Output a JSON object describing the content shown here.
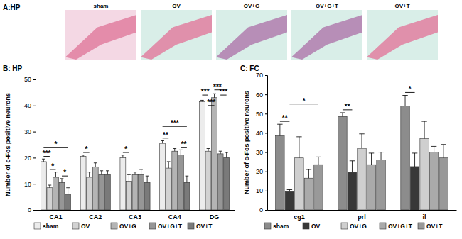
{
  "panel_a": {
    "title": "A:HP",
    "labels": [
      "sham",
      "OV",
      "OV+G",
      "OV+G+T",
      "OV+T"
    ]
  },
  "chart_data": [
    {
      "type": "bar",
      "title": "B: HP",
      "y_label": "Number of c-Fos positive neurons",
      "categories": [
        "CA1",
        "CA2",
        "CA3",
        "CA4",
        "DG"
      ],
      "ylim": [
        0,
        50
      ],
      "yticks": [
        0,
        10,
        20,
        30,
        40,
        50
      ],
      "grid": false,
      "legend": "bottom",
      "series": [
        {
          "name": "sham",
          "color": "#ececec",
          "values": [
            18.5,
            20.5,
            20,
            25.5,
            41.5
          ],
          "errors": [
            1,
            0.5,
            1,
            1,
            0.5
          ]
        },
        {
          "name": "OV",
          "color": "#d2d2d2",
          "values": [
            8.5,
            12.5,
            11,
            16,
            22.5
          ],
          "errors": [
            1,
            2,
            2.5,
            2.5,
            1
          ]
        },
        {
          "name": "OV+G",
          "color": "#b4b4b4",
          "values": [
            12.5,
            16.5,
            13.5,
            22.5,
            43
          ],
          "errors": [
            2,
            1.5,
            1,
            1,
            1.5
          ]
        },
        {
          "name": "OV+G+T",
          "color": "#969696",
          "values": [
            10.5,
            13.5,
            13.5,
            21,
            21.5
          ],
          "errors": [
            1.5,
            1.5,
            2,
            2,
            1
          ]
        },
        {
          "name": "OV+T",
          "color": "#7a7a7a",
          "values": [
            6,
            13.5,
            10.5,
            10.5,
            20
          ],
          "errors": [
            2.5,
            1.5,
            2.5,
            2.5,
            2
          ]
        }
      ],
      "annotations": [
        {
          "text": "***",
          "category": 0,
          "from": 0,
          "to": 1,
          "y": 20.5
        },
        {
          "text": "*",
          "category": 0,
          "from": 1,
          "to": 2,
          "y": 15.5
        },
        {
          "text": "*",
          "category": 0,
          "from": 3,
          "to": 4,
          "y": 13
        },
        {
          "text": "*",
          "category": 0,
          "from": 0,
          "to": 4,
          "y": 24
        },
        {
          "text": "*",
          "category": 1,
          "from": 0,
          "to": 1,
          "y": 22
        },
        {
          "text": "*",
          "category": 2,
          "from": 0,
          "to": 1,
          "y": 22
        },
        {
          "text": "**",
          "category": 3,
          "from": 0,
          "to": 1,
          "y": 27.5
        },
        {
          "text": "**",
          "category": 3,
          "from": 3,
          "to": 4,
          "y": 24
        },
        {
          "text": "***",
          "category": 3,
          "from": 0,
          "to": 4,
          "y": 32
        },
        {
          "text": "***",
          "category": 4,
          "from": 0,
          "to": 1,
          "y": 44
        },
        {
          "text": "***",
          "category": 4,
          "from": 1,
          "to": 2,
          "y": 40
        },
        {
          "text": "***",
          "category": 4,
          "from": 2,
          "to": 3,
          "y": 46
        },
        {
          "text": "***",
          "category": 4,
          "from": 3,
          "to": 4,
          "y": 44
        }
      ]
    },
    {
      "type": "bar",
      "title": "C: FC",
      "y_label": "Number of c-Fos positive neurons",
      "categories": [
        "cg1",
        "prl",
        "il"
      ],
      "ylim": [
        0,
        70
      ],
      "yticks": [
        0,
        10,
        20,
        30,
        40,
        50,
        60,
        70
      ],
      "grid": false,
      "legend": "bottom",
      "series": [
        {
          "name": "sham",
          "color": "#8c8c8c",
          "values": [
            38.5,
            48.5,
            54
          ],
          "errors": [
            6,
            2,
            5.5
          ]
        },
        {
          "name": "OV",
          "color": "#383838",
          "values": [
            9.5,
            19.5,
            22.5
          ],
          "errors": [
            1,
            6,
            7
          ]
        },
        {
          "name": "OV+G",
          "color": "#cfcfcf",
          "values": [
            27,
            32,
            37
          ],
          "errors": [
            11,
            7.5,
            9
          ]
        },
        {
          "name": "OV+G+T",
          "color": "#aaaaaa",
          "values": [
            16.5,
            23.5,
            30
          ],
          "errors": [
            4.5,
            6,
            3
          ]
        },
        {
          "name": "OV+T",
          "color": "#999999",
          "values": [
            23.5,
            26,
            27
          ],
          "errors": [
            4,
            4,
            7
          ]
        }
      ],
      "annotations": [
        {
          "text": "**",
          "category": 0,
          "from": 0,
          "to": 1,
          "y": 46
        },
        {
          "text": "*",
          "category": 0,
          "from": 1,
          "to": 4,
          "y": 55
        },
        {
          "text": "**",
          "category": 1,
          "from": 0,
          "to": 1,
          "y": 52
        },
        {
          "text": "*",
          "category": 2,
          "from": 0,
          "to": 1,
          "y": 61
        }
      ]
    }
  ]
}
